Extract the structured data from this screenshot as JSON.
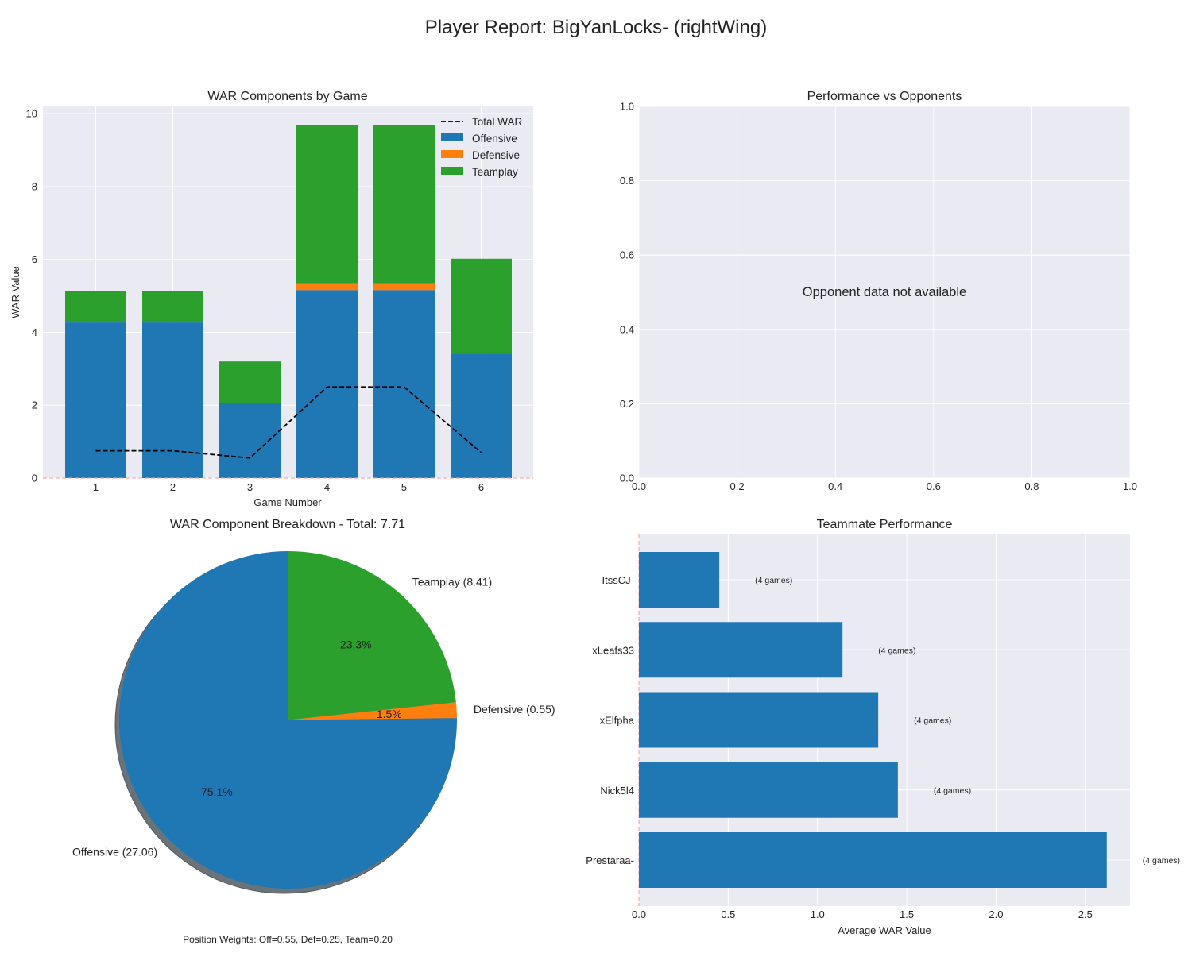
{
  "title": "Player Report: BigYanLocks- (rightWing)",
  "colors": {
    "offensive": "#1f77b4",
    "defensive": "#ff7f0e",
    "teamplay": "#2ca02c",
    "total_line": "#000000",
    "axes_bg": "#eaeaf2",
    "grid": "#ffffff",
    "zero_line": "#ff9999"
  },
  "chart_data": [
    {
      "id": "war-components",
      "type": "bar",
      "stacked": true,
      "title": "WAR Components by Game",
      "xlabel": "Game Number",
      "ylabel": "WAR Value",
      "categories": [
        "1",
        "2",
        "3",
        "4",
        "5",
        "6"
      ],
      "series": [
        {
          "name": "Offensive",
          "values": [
            4.27,
            4.27,
            2.07,
            5.16,
            5.16,
            3.41
          ]
        },
        {
          "name": "Defensive",
          "values": [
            0.0,
            0.0,
            0.0,
            0.19,
            0.19,
            0.0
          ]
        },
        {
          "name": "Teamplay",
          "values": [
            0.86,
            0.86,
            1.13,
            4.33,
            4.33,
            2.61
          ]
        }
      ],
      "line_series": {
        "name": "Total WAR",
        "style": "dashed",
        "values": [
          0.75,
          0.75,
          0.55,
          2.5,
          2.5,
          0.7
        ]
      },
      "ylim": [
        0,
        10.2
      ],
      "yticks": [
        0,
        2,
        4,
        6,
        8,
        10
      ],
      "grid": true,
      "legend": "top-right",
      "legend_entries": [
        "Total WAR",
        "Offensive",
        "Defensive",
        "Teamplay"
      ]
    },
    {
      "id": "vs-opponents",
      "type": "scatter",
      "title": "Performance vs Opponents",
      "xlim": [
        0,
        1
      ],
      "ylim": [
        0,
        1
      ],
      "xticks": [
        "0.0",
        "0.2",
        "0.4",
        "0.6",
        "0.8",
        "1.0"
      ],
      "yticks": [
        "0.0",
        "0.2",
        "0.4",
        "0.6",
        "0.8",
        "1.0"
      ],
      "annotation": "Opponent data not available",
      "grid": true
    },
    {
      "id": "breakdown",
      "type": "pie",
      "title": "WAR Component Breakdown - Total: 7.71",
      "slices": [
        {
          "label": "Offensive (27.06)",
          "value": 75.1,
          "pct_label": "75.1%",
          "color": "#1f77b4"
        },
        {
          "label": "Defensive (0.55)",
          "value": 1.5,
          "pct_label": "1.5%",
          "color": "#ff7f0e"
        },
        {
          "label": "Teamplay (8.41)",
          "value": 23.3,
          "pct_label": "23.3%",
          "color": "#2ca02c"
        }
      ],
      "start_angle_deg": 90,
      "shadow": true,
      "note": "Position Weights: Off=0.55, Def=0.25, Team=0.20"
    },
    {
      "id": "teammates",
      "type": "bar",
      "orientation": "horizontal",
      "title": "Teammate Performance",
      "xlabel": "Average WAR Value",
      "categories": [
        "Prestaraa-",
        "Nick5l4",
        "xElfpha",
        "xLeafs33",
        "ItssCJ-"
      ],
      "values": [
        2.62,
        1.45,
        1.34,
        1.14,
        0.45
      ],
      "bar_labels": [
        "(4 games)",
        "(4 games)",
        "(4 games)",
        "(4 games)",
        "(4 games)"
      ],
      "xlim": [
        0,
        2.75
      ],
      "xticks": [
        0.0,
        0.5,
        1.0,
        1.5,
        2.0,
        2.5
      ],
      "grid": true
    }
  ]
}
